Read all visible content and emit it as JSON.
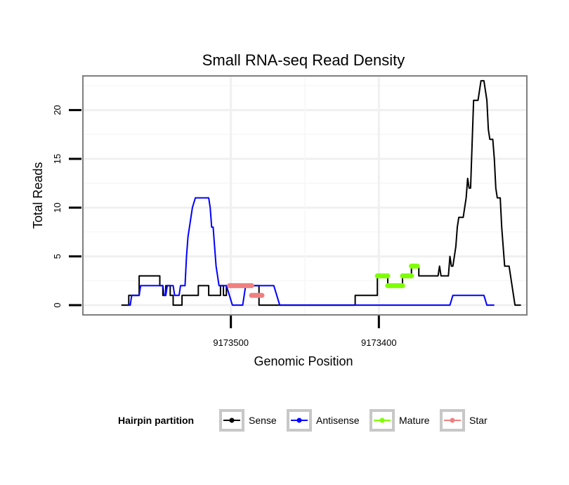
{
  "chart_data": {
    "type": "line",
    "title": "Small RNA-seq Read Density",
    "xlabel": "Genomic Position",
    "ylabel": "Total Reads",
    "xlim": [
      9173600,
      9173300
    ],
    "ylim": [
      -1,
      23.5
    ],
    "x_reversed": true,
    "x_ticks": [
      9173500,
      9173400
    ],
    "x_tick_labels": [
      "9173500",
      "9173400"
    ],
    "y_ticks": [
      0,
      5,
      10,
      15,
      20
    ],
    "y_tick_labels": [
      "0",
      "5",
      "10",
      "15",
      "20"
    ],
    "grid": true,
    "legend": {
      "title": "Hairpin partition",
      "position": "bottom",
      "entries": [
        "Sense",
        "Antisense",
        "Mature",
        "Star"
      ]
    },
    "series": [
      {
        "name": "Sense",
        "color": "#000000",
        "points": [
          [
            9173574,
            0
          ],
          [
            9173569,
            0
          ],
          [
            9173569,
            1
          ],
          [
            9173562,
            1
          ],
          [
            9173562,
            3
          ],
          [
            9173548,
            3
          ],
          [
            9173548,
            2
          ],
          [
            9173546,
            2
          ],
          [
            9173546,
            1
          ],
          [
            9173544,
            1
          ],
          [
            9173544,
            2
          ],
          [
            9173541,
            2
          ],
          [
            9173541,
            1
          ],
          [
            9173539,
            1
          ],
          [
            9173539,
            0
          ],
          [
            9173533,
            0
          ],
          [
            9173533,
            1
          ],
          [
            9173522,
            1
          ],
          [
            9173522,
            2
          ],
          [
            9173515,
            2
          ],
          [
            9173515,
            1
          ],
          [
            9173507,
            1
          ],
          [
            9173507,
            2
          ],
          [
            9173505,
            2
          ],
          [
            9173505,
            1
          ],
          [
            9173503,
            1
          ],
          [
            9173503,
            2
          ],
          [
            9173481,
            2
          ],
          [
            9173481,
            0
          ],
          [
            9173416,
            0
          ],
          [
            9173416,
            1
          ],
          [
            9173401,
            1
          ],
          [
            9173401,
            3
          ],
          [
            9173394,
            3
          ],
          [
            9173394,
            2
          ],
          [
            9173384,
            2
          ],
          [
            9173384,
            3
          ],
          [
            9173378,
            3
          ],
          [
            9173378,
            4
          ],
          [
            9173373,
            4
          ],
          [
            9173373,
            3
          ],
          [
            9173360,
            3
          ],
          [
            9173359,
            4
          ],
          [
            9173358,
            3
          ],
          [
            9173353,
            3
          ],
          [
            9173352,
            5
          ],
          [
            9173351,
            4
          ],
          [
            9173350,
            4
          ],
          [
            9173348,
            6
          ],
          [
            9173347,
            8
          ],
          [
            9173346,
            9
          ],
          [
            9173343,
            9
          ],
          [
            9173341,
            11
          ],
          [
            9173340,
            13
          ],
          [
            9173339,
            12
          ],
          [
            9173338,
            12
          ],
          [
            9173336,
            21
          ],
          [
            9173333,
            21
          ],
          [
            9173332,
            22
          ],
          [
            9173331,
            23
          ],
          [
            9173329,
            23
          ],
          [
            9173328,
            22
          ],
          [
            9173327,
            21
          ],
          [
            9173326,
            18
          ],
          [
            9173325,
            17
          ],
          [
            9173323,
            17
          ],
          [
            9173322,
            15
          ],
          [
            9173321,
            12
          ],
          [
            9173320,
            11
          ],
          [
            9173318,
            11
          ],
          [
            9173317,
            8
          ],
          [
            9173316,
            6
          ],
          [
            9173315,
            4
          ],
          [
            9173312,
            4
          ],
          [
            9173310,
            2
          ],
          [
            9173309,
            1
          ],
          [
            9173308,
            0
          ],
          [
            9173304,
            0
          ]
        ]
      },
      {
        "name": "Antisense",
        "color": "#0000ff",
        "points": [
          [
            9173570,
            0
          ],
          [
            9173568,
            0
          ],
          [
            9173567,
            1
          ],
          [
            9173562,
            1
          ],
          [
            9173561,
            2
          ],
          [
            9173546,
            2
          ],
          [
            9173545,
            1
          ],
          [
            9173544,
            1
          ],
          [
            9173543,
            2
          ],
          [
            9173539,
            2
          ],
          [
            9173538,
            1
          ],
          [
            9173535,
            1
          ],
          [
            9173534,
            2
          ],
          [
            9173531,
            2
          ],
          [
            9173530,
            5
          ],
          [
            9173529,
            7
          ],
          [
            9173528,
            8
          ],
          [
            9173527,
            9
          ],
          [
            9173526,
            10
          ],
          [
            9173524,
            11
          ],
          [
            9173515,
            11
          ],
          [
            9173514,
            10
          ],
          [
            9173513,
            8
          ],
          [
            9173512,
            8
          ],
          [
            9173511,
            6
          ],
          [
            9173510,
            4
          ],
          [
            9173509,
            3
          ],
          [
            9173508,
            2
          ],
          [
            9173503,
            2
          ],
          [
            9173501,
            1
          ],
          [
            9173499,
            0
          ],
          [
            9173492,
            0
          ],
          [
            9173491,
            1
          ],
          [
            9173490,
            2
          ],
          [
            9173471,
            2
          ],
          [
            9173469,
            1
          ],
          [
            9173467,
            0
          ],
          [
            9173352,
            0
          ],
          [
            9173350,
            1
          ],
          [
            9173329,
            1
          ],
          [
            9173327,
            0
          ],
          [
            9173322,
            0
          ]
        ]
      },
      {
        "name": "Mature",
        "color": "#7fff00",
        "segments": [
          [
            [
              9173401,
              3
            ],
            [
              9173394,
              3
            ]
          ],
          [
            [
              9173394,
              2
            ],
            [
              9173384,
              2
            ]
          ],
          [
            [
              9173384,
              3
            ],
            [
              9173378,
              3
            ]
          ],
          [
            [
              9173378,
              4
            ],
            [
              9173374,
              4
            ]
          ]
        ]
      },
      {
        "name": "Star",
        "color": "#f08080",
        "segments": [
          [
            [
              9173501,
              2
            ],
            [
              9173486,
              2
            ]
          ],
          [
            [
              9173486,
              1
            ],
            [
              9173479,
              1
            ]
          ]
        ]
      }
    ]
  }
}
